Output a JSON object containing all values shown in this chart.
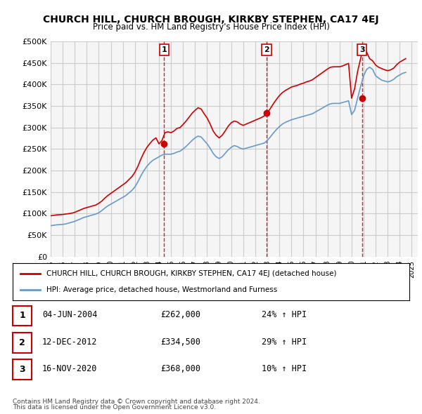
{
  "title": "CHURCH HILL, CHURCH BROUGH, KIRKBY STEPHEN, CA17 4EJ",
  "subtitle": "Price paid vs. HM Land Registry's House Price Index (HPI)",
  "ylabel_ticks": [
    "£0",
    "£50K",
    "£100K",
    "£150K",
    "£200K",
    "£250K",
    "£300K",
    "£350K",
    "£400K",
    "£450K",
    "£500K"
  ],
  "ytick_values": [
    0,
    50000,
    100000,
    150000,
    200000,
    250000,
    300000,
    350000,
    400000,
    450000,
    500000
  ],
  "ylim": [
    0,
    500000
  ],
  "xlim_start": 1995.0,
  "xlim_end": 2025.5,
  "red_line_color": "#cc0000",
  "blue_line_color": "#6699cc",
  "sale_marker_color": "#cc0000",
  "sale_label_bg": "#ffffff",
  "sale_label_border": "#cc0000",
  "grid_color": "#cccccc",
  "background_color": "#ffffff",
  "plot_bg_color": "#f5f5f5",
  "sales": [
    {
      "num": 1,
      "date": "04-JUN-2004",
      "price": 262000,
      "x": 2004.43,
      "pct": "24%",
      "dir": "↑"
    },
    {
      "num": 2,
      "date": "12-DEC-2012",
      "price": 334500,
      "x": 2012.94,
      "pct": "29%",
      "dir": "↑"
    },
    {
      "num": 3,
      "date": "16-NOV-2020",
      "price": 368000,
      "x": 2020.87,
      "pct": "10%",
      "dir": "↑"
    }
  ],
  "legend_red_label": "CHURCH HILL, CHURCH BROUGH, KIRKBY STEPHEN, CA17 4EJ (detached house)",
  "legend_blue_label": "HPI: Average price, detached house, Westmorland and Furness",
  "footer1": "Contains HM Land Registry data © Crown copyright and database right 2024.",
  "footer2": "This data is licensed under the Open Government Licence v3.0.",
  "hpi_x": [
    1995.0,
    1995.25,
    1995.5,
    1995.75,
    1996.0,
    1996.25,
    1996.5,
    1996.75,
    1997.0,
    1997.25,
    1997.5,
    1997.75,
    1998.0,
    1998.25,
    1998.5,
    1998.75,
    1999.0,
    1999.25,
    1999.5,
    1999.75,
    2000.0,
    2000.25,
    2000.5,
    2000.75,
    2001.0,
    2001.25,
    2001.5,
    2001.75,
    2002.0,
    2002.25,
    2002.5,
    2002.75,
    2003.0,
    2003.25,
    2003.5,
    2003.75,
    2004.0,
    2004.25,
    2004.5,
    2004.75,
    2005.0,
    2005.25,
    2005.5,
    2005.75,
    2006.0,
    2006.25,
    2006.5,
    2006.75,
    2007.0,
    2007.25,
    2007.5,
    2007.75,
    2008.0,
    2008.25,
    2008.5,
    2008.75,
    2009.0,
    2009.25,
    2009.5,
    2009.75,
    2010.0,
    2010.25,
    2010.5,
    2010.75,
    2011.0,
    2011.25,
    2011.5,
    2011.75,
    2012.0,
    2012.25,
    2012.5,
    2012.75,
    2013.0,
    2013.25,
    2013.5,
    2013.75,
    2014.0,
    2014.25,
    2014.5,
    2014.75,
    2015.0,
    2015.25,
    2015.5,
    2015.75,
    2016.0,
    2016.25,
    2016.5,
    2016.75,
    2017.0,
    2017.25,
    2017.5,
    2017.75,
    2018.0,
    2018.25,
    2018.5,
    2018.75,
    2019.0,
    2019.25,
    2019.5,
    2019.75,
    2020.0,
    2020.25,
    2020.5,
    2020.75,
    2021.0,
    2021.25,
    2021.5,
    2021.75,
    2022.0,
    2022.25,
    2022.5,
    2022.75,
    2023.0,
    2023.25,
    2023.5,
    2023.75,
    2024.0,
    2024.25,
    2024.5
  ],
  "hpi_y": [
    72000,
    73000,
    74000,
    74500,
    75000,
    76000,
    78000,
    80000,
    82000,
    85000,
    88000,
    91000,
    93000,
    95000,
    97000,
    99000,
    102000,
    107000,
    113000,
    118000,
    122000,
    126000,
    130000,
    134000,
    138000,
    142000,
    148000,
    154000,
    162000,
    174000,
    188000,
    200000,
    210000,
    218000,
    224000,
    228000,
    232000,
    236000,
    238000,
    238000,
    238000,
    240000,
    243000,
    245000,
    250000,
    256000,
    263000,
    270000,
    276000,
    280000,
    278000,
    270000,
    262000,
    252000,
    240000,
    232000,
    228000,
    232000,
    240000,
    248000,
    254000,
    258000,
    256000,
    252000,
    250000,
    252000,
    254000,
    256000,
    258000,
    260000,
    262000,
    264000,
    270000,
    278000,
    287000,
    295000,
    302000,
    308000,
    312000,
    315000,
    318000,
    320000,
    322000,
    324000,
    326000,
    328000,
    330000,
    332000,
    336000,
    340000,
    344000,
    348000,
    352000,
    355000,
    356000,
    356000,
    356000,
    358000,
    360000,
    362000,
    330000,
    340000,
    368000,
    395000,
    420000,
    435000,
    440000,
    435000,
    420000,
    415000,
    410000,
    408000,
    406000,
    408000,
    412000,
    418000,
    422000,
    426000,
    428000
  ],
  "red_x": [
    1995.0,
    1995.25,
    1995.5,
    1995.75,
    1996.0,
    1996.25,
    1996.5,
    1996.75,
    1997.0,
    1997.25,
    1997.5,
    1997.75,
    1998.0,
    1998.25,
    1998.5,
    1998.75,
    1999.0,
    1999.25,
    1999.5,
    1999.75,
    2000.0,
    2000.25,
    2000.5,
    2000.75,
    2001.0,
    2001.25,
    2001.5,
    2001.75,
    2002.0,
    2002.25,
    2002.5,
    2002.75,
    2003.0,
    2003.25,
    2003.5,
    2003.75,
    2004.0,
    2004.25,
    2004.5,
    2004.75,
    2005.0,
    2005.25,
    2005.5,
    2005.75,
    2006.0,
    2006.25,
    2006.5,
    2006.75,
    2007.0,
    2007.25,
    2007.5,
    2007.75,
    2008.0,
    2008.25,
    2008.5,
    2008.75,
    2009.0,
    2009.25,
    2009.5,
    2009.75,
    2010.0,
    2010.25,
    2010.5,
    2010.75,
    2011.0,
    2011.25,
    2011.5,
    2011.75,
    2012.0,
    2012.25,
    2012.5,
    2012.75,
    2013.0,
    2013.25,
    2013.5,
    2013.75,
    2014.0,
    2014.25,
    2014.5,
    2014.75,
    2015.0,
    2015.25,
    2015.5,
    2015.75,
    2016.0,
    2016.25,
    2016.5,
    2016.75,
    2017.0,
    2017.25,
    2017.5,
    2017.75,
    2018.0,
    2018.25,
    2018.5,
    2018.75,
    2019.0,
    2019.25,
    2019.5,
    2019.75,
    2020.0,
    2020.25,
    2020.5,
    2020.75,
    2021.0,
    2021.25,
    2021.5,
    2021.75,
    2022.0,
    2022.25,
    2022.5,
    2022.75,
    2023.0,
    2023.25,
    2023.5,
    2023.75,
    2024.0,
    2024.25,
    2024.5
  ],
  "red_y": [
    95000,
    96000,
    97000,
    97500,
    98000,
    99000,
    100000,
    101000,
    103000,
    106000,
    109000,
    112000,
    114000,
    116000,
    118000,
    120000,
    124000,
    129000,
    136000,
    142000,
    147000,
    152000,
    157000,
    162000,
    167000,
    172000,
    179000,
    186000,
    196000,
    210000,
    227000,
    242000,
    254000,
    263000,
    271000,
    276000,
    262000,
    270000,
    288000,
    290000,
    288000,
    292000,
    298000,
    300000,
    307000,
    315000,
    324000,
    333000,
    340000,
    346000,
    343000,
    332000,
    322000,
    308000,
    292000,
    282000,
    276000,
    282000,
    292000,
    303000,
    311000,
    315000,
    313000,
    308000,
    305000,
    308000,
    311000,
    314000,
    317000,
    320000,
    323000,
    327000,
    334000,
    344000,
    355000,
    365000,
    374000,
    381000,
    386000,
    390000,
    394000,
    396000,
    398000,
    401000,
    403000,
    406000,
    408000,
    411000,
    416000,
    421000,
    426000,
    431000,
    436000,
    440000,
    441000,
    441000,
    441000,
    443000,
    446000,
    449000,
    368000,
    390000,
    430000,
    460000,
    490000,
    475000,
    460000,
    455000,
    445000,
    440000,
    437000,
    434000,
    432000,
    434000,
    438000,
    446000,
    452000,
    456000,
    460000
  ],
  "xtick_years": [
    1995,
    1996,
    1997,
    1998,
    1999,
    2000,
    2001,
    2002,
    2003,
    2004,
    2005,
    2006,
    2007,
    2008,
    2009,
    2010,
    2011,
    2012,
    2013,
    2014,
    2015,
    2016,
    2017,
    2018,
    2019,
    2020,
    2021,
    2022,
    2023,
    2024,
    2025
  ]
}
